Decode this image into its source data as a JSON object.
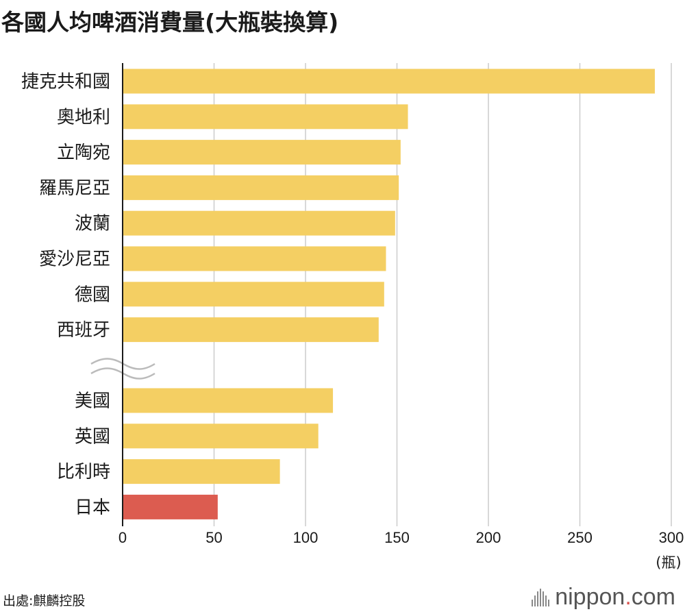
{
  "title": "各國人均啤酒消費量(大瓶裝換算)",
  "source": "出處:麒麟控股",
  "brand": {
    "name": "nippon",
    "dot": ".",
    "tld": "com"
  },
  "colors": {
    "bar": "#f4cf63",
    "highlight": "#dc5c50",
    "grid": "#cccccc",
    "axis": "#1a1a1a"
  },
  "chart_data": {
    "type": "bar",
    "orientation": "horizontal",
    "title": "各國人均啤酒消費量(大瓶裝換算)",
    "unit": "(瓶)",
    "xlim": [
      0,
      300
    ],
    "ticks": [
      "0",
      "50",
      "100",
      "150",
      "200",
      "250",
      "300"
    ],
    "grid": true,
    "axis_break_after": "西班牙",
    "highlight": "日本",
    "categories": [
      "捷克共和國",
      "奧地利",
      "立陶宛",
      "羅馬尼亞",
      "波蘭",
      "愛沙尼亞",
      "德國",
      "西班牙",
      "美國",
      "英國",
      "比利時",
      "日本"
    ],
    "values": [
      291,
      156,
      152,
      151,
      149,
      144,
      143,
      140,
      115,
      107,
      86,
      52
    ]
  }
}
